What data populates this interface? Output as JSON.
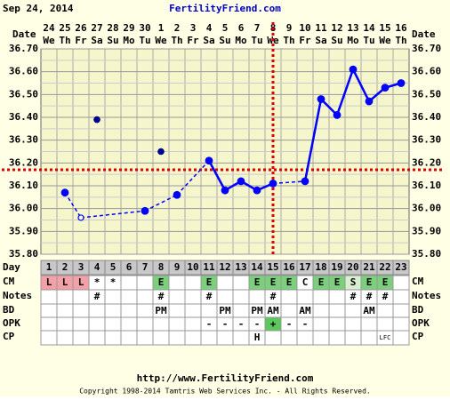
{
  "header": {
    "date": "Sep 24, 2014",
    "site": "FertilityFriend.com"
  },
  "row_labels": {
    "date": "Date",
    "day": "Day",
    "cm": "CM",
    "notes": "Notes",
    "bd": "BD",
    "opk": "OPK",
    "cp": "CP"
  },
  "chart_data": {
    "type": "line",
    "color": "#0000ff",
    "coverline_color": "#dd0000",
    "dates": [
      "24",
      "25",
      "26",
      "27",
      "28",
      "29",
      "30",
      "1",
      "2",
      "3",
      "4",
      "5",
      "6",
      "7",
      "8",
      "9",
      "10",
      "11",
      "12",
      "13",
      "14",
      "15",
      "16"
    ],
    "weekdays": [
      "We",
      "Th",
      "Fr",
      "Sa",
      "Su",
      "Mo",
      "Tu",
      "We",
      "Th",
      "Fr",
      "Sa",
      "Su",
      "Mo",
      "Tu",
      "We",
      "Th",
      "Fr",
      "Sa",
      "Su",
      "Mo",
      "Tu",
      "We",
      "Th"
    ],
    "days": [
      1,
      2,
      3,
      4,
      5,
      6,
      7,
      8,
      9,
      10,
      11,
      12,
      13,
      14,
      15,
      16,
      17,
      18,
      19,
      20,
      21,
      22,
      23
    ],
    "temperatures": [
      null,
      36.07,
      35.96,
      null,
      null,
      null,
      35.99,
      null,
      36.06,
      null,
      36.21,
      36.08,
      36.12,
      36.08,
      36.11,
      null,
      36.12,
      36.48,
      36.41,
      36.61,
      36.47,
      36.53,
      36.55
    ],
    "excluded_temperatures": [
      null,
      null,
      null,
      36.39,
      null,
      null,
      null,
      36.25,
      null,
      null,
      null,
      null,
      null,
      null,
      null,
      null,
      null,
      null,
      null,
      null,
      null,
      null,
      null
    ],
    "open_points": [
      2
    ],
    "coverline": 36.17,
    "ovulation_index": 14,
    "ylim": [
      35.8,
      36.7
    ],
    "yticks": [
      {
        "value": 35.8,
        "label": "35.80"
      },
      {
        "value": 35.9,
        "label": "35.90"
      },
      {
        "value": 36.0,
        "label": "36.00"
      },
      {
        "value": 36.1,
        "label": "36.10"
      },
      {
        "value": 36.2,
        "label": "36.20"
      },
      {
        "value": 36.3,
        "label": "36.30"
      },
      {
        "value": 36.4,
        "label": "36.40"
      },
      {
        "value": 36.5,
        "label": "36.50"
      },
      {
        "value": 36.6,
        "label": "36.60"
      },
      {
        "value": 36.7,
        "label": "36.70"
      }
    ],
    "grid": true
  },
  "rows": {
    "cm": [
      "L",
      "L",
      "L",
      "*",
      "*",
      null,
      null,
      "E",
      null,
      null,
      "E",
      null,
      null,
      "E",
      "E",
      "E",
      "C",
      "E",
      "E",
      "S",
      "E",
      "E",
      null
    ],
    "notes": [
      null,
      null,
      null,
      "#",
      null,
      null,
      null,
      "#",
      null,
      null,
      "#",
      null,
      null,
      null,
      "#",
      null,
      null,
      null,
      null,
      "#",
      "#",
      "#",
      null
    ],
    "bd": [
      null,
      null,
      null,
      null,
      null,
      null,
      null,
      "PM",
      null,
      null,
      null,
      "PM",
      null,
      "PM",
      "AM",
      null,
      "AM",
      null,
      null,
      null,
      "AM",
      null,
      null
    ],
    "opk": [
      null,
      null,
      null,
      null,
      null,
      null,
      null,
      null,
      null,
      null,
      "-",
      "-",
      "-",
      "-",
      "+",
      "-",
      "-",
      null,
      null,
      null,
      null,
      null,
      null
    ],
    "cp": [
      null,
      null,
      null,
      null,
      null,
      null,
      null,
      null,
      null,
      null,
      null,
      null,
      null,
      "H",
      null,
      null,
      null,
      null,
      null,
      null,
      null,
      "LFC",
      null
    ]
  },
  "footer": {
    "url": "http://www.FertilityFriend.com",
    "copyright": "Copyright 1998-2014 Tamtris Web Services Inc. - All Rights Reserved."
  }
}
